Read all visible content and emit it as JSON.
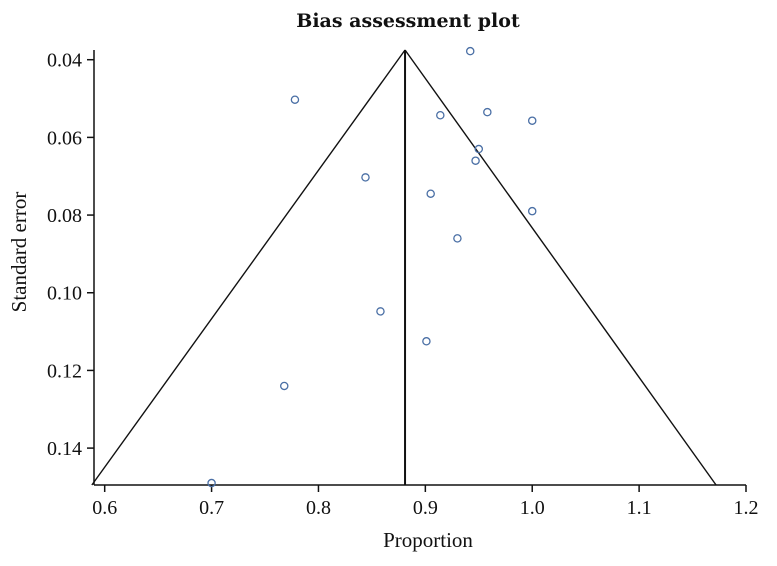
{
  "chart_data": {
    "type": "scatter",
    "title": "Bias assessment plot",
    "xlabel": "Proportion",
    "ylabel": "Standard error",
    "xlim": [
      0.59,
      1.2
    ],
    "ylim": [
      0.0375,
      0.1495
    ],
    "y_inverted": true,
    "x_ticks": [
      0.6,
      0.7,
      0.8,
      0.9,
      1.0,
      1.1,
      1.2
    ],
    "x_tick_labels": [
      "0.6",
      "0.7",
      "0.8",
      "0.9",
      "1.0",
      "1.1",
      "1.2"
    ],
    "y_ticks": [
      0.04,
      0.06,
      0.08,
      0.1,
      0.12,
      0.14
    ],
    "y_tick_labels": [
      "0.04",
      "0.06",
      "0.08",
      "0.10",
      "0.12",
      "0.14"
    ],
    "grid": false,
    "point_color": "#4a6fa5",
    "funnel": {
      "apex": {
        "x": 0.881,
        "y": 0.0375
      },
      "base_left": {
        "x": 0.588,
        "y": 0.1495
      },
      "base_right": {
        "x": 1.172,
        "y": 0.1495
      },
      "center_x": 0.881
    },
    "points": [
      {
        "x": 0.942,
        "y": 0.0378
      },
      {
        "x": 0.778,
        "y": 0.0503
      },
      {
        "x": 0.914,
        "y": 0.0543
      },
      {
        "x": 0.958,
        "y": 0.0535
      },
      {
        "x": 1.0,
        "y": 0.0557
      },
      {
        "x": 0.95,
        "y": 0.063
      },
      {
        "x": 0.947,
        "y": 0.066
      },
      {
        "x": 0.844,
        "y": 0.0703
      },
      {
        "x": 0.905,
        "y": 0.0745
      },
      {
        "x": 1.0,
        "y": 0.079
      },
      {
        "x": 0.93,
        "y": 0.086
      },
      {
        "x": 0.858,
        "y": 0.1048
      },
      {
        "x": 0.901,
        "y": 0.1125
      },
      {
        "x": 0.768,
        "y": 0.124
      },
      {
        "x": 0.7,
        "y": 0.149
      }
    ]
  }
}
